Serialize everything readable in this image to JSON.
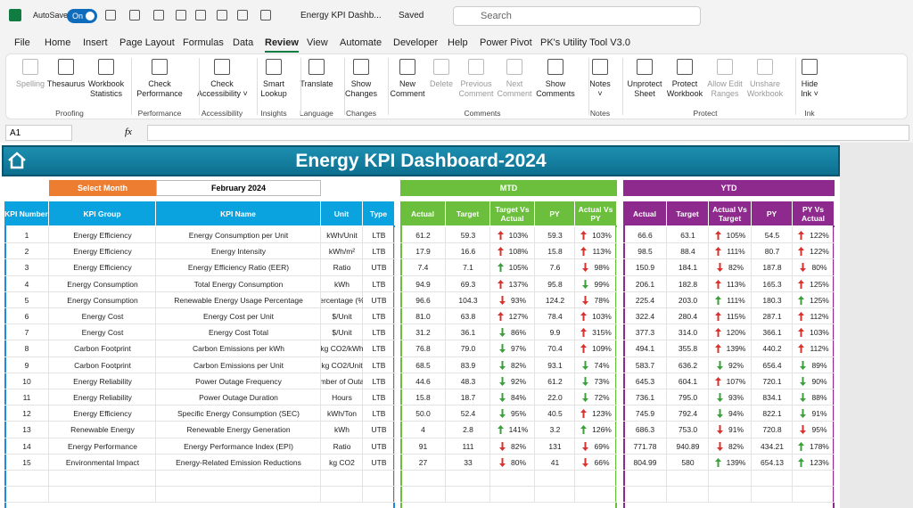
{
  "titlebar": {
    "autosave": "AutoSave",
    "toggle": "On",
    "filename": "Energy KPI Dashb...",
    "status": "Saved",
    "search": "Search"
  },
  "menu": [
    "File",
    "Home",
    "Insert",
    "Page Layout",
    "Formulas",
    "Data",
    "Review",
    "View",
    "Automate",
    "Developer",
    "Help",
    "Power Pivot",
    "PK's Utility Tool V3.0"
  ],
  "ribbon": {
    "buttons": [
      [
        "Spelling"
      ],
      [
        "Thesaurus"
      ],
      [
        "Workbook",
        "Statistics"
      ],
      [
        "Check",
        "Performance"
      ],
      [
        "Check",
        "Accessibility ˅"
      ],
      [
        "Smart",
        "Lookup"
      ],
      [
        "Translate"
      ],
      [
        "Show",
        "Changes"
      ],
      [
        "New",
        "Comment"
      ],
      [
        "Delete"
      ],
      [
        "Previous",
        "Comment"
      ],
      [
        "Next",
        "Comment"
      ],
      [
        "Show",
        "Comments"
      ],
      [
        "Notes",
        "˅"
      ],
      [
        "Unprotect",
        "Sheet"
      ],
      [
        "Protect",
        "Workbook"
      ],
      [
        "Allow Edit",
        "Ranges"
      ],
      [
        "Unshare",
        "Workbook"
      ],
      [
        "Hide",
        "Ink ˅"
      ]
    ],
    "groups": [
      "Proofing",
      "Performance",
      "Accessibility",
      "Insights",
      "Language",
      "Changes",
      "Comments",
      "Notes",
      "Protect",
      "Ink"
    ]
  },
  "formula_bar": {
    "name_box": "A1",
    "fx": "fx"
  },
  "dashboard": {
    "title": "Energy KPI Dashboard-2024",
    "select_month": "Select Month",
    "month": "February 2024",
    "mtd": "MTD",
    "ytd": "YTD"
  },
  "table": {
    "headers": [
      "KPI Number",
      "KPI Group",
      "KPI Name",
      "Unit",
      "Type",
      "Actual",
      "Target",
      "Target Vs Actual",
      "PY",
      "Actual Vs PY",
      "Actual",
      "Target",
      "Actual Vs Target",
      "PY",
      "PY Vs Actual"
    ],
    "rows": [
      [
        "1",
        "Energy Efficiency",
        "Energy Consumption per Unit",
        "kWh/Unit",
        "LTB",
        "61.2",
        "59.3",
        "103%",
        "59.3",
        "103%",
        "66.6",
        "63.1",
        "105%",
        "54.5",
        "122%"
      ],
      [
        "2",
        "Energy Efficiency",
        "Energy Intensity",
        "kWh/m²",
        "LTB",
        "17.9",
        "16.6",
        "108%",
        "15.8",
        "113%",
        "98.5",
        "88.4",
        "111%",
        "80.7",
        "122%"
      ],
      [
        "3",
        "Energy Efficiency",
        "Energy Efficiency Ratio (EER)",
        "Ratio",
        "UTB",
        "7.4",
        "7.1",
        "105%",
        "7.6",
        "98%",
        "150.9",
        "184.1",
        "82%",
        "187.8",
        "80%"
      ],
      [
        "4",
        "Energy Consumption",
        "Total Energy Consumption",
        "kWh",
        "LTB",
        "94.9",
        "69.3",
        "137%",
        "95.8",
        "99%",
        "206.1",
        "182.8",
        "113%",
        "165.3",
        "125%"
      ],
      [
        "5",
        "Energy Consumption",
        "Renewable Energy Usage Percentage",
        "ercentage (%",
        "UTB",
        "96.6",
        "104.3",
        "93%",
        "124.2",
        "78%",
        "225.4",
        "203.0",
        "111%",
        "180.3",
        "125%"
      ],
      [
        "6",
        "Energy Cost",
        "Energy Cost per Unit",
        "$/Unit",
        "LTB",
        "81.0",
        "63.8",
        "127%",
        "78.4",
        "103%",
        "322.4",
        "280.4",
        "115%",
        "287.1",
        "112%"
      ],
      [
        "7",
        "Energy Cost",
        "Energy Cost Total",
        "$/Unit",
        "LTB",
        "31.2",
        "36.1",
        "86%",
        "9.9",
        "315%",
        "377.3",
        "314.0",
        "120%",
        "366.1",
        "103%"
      ],
      [
        "8",
        "Carbon Footprint",
        "Carbon Emissions per kWh",
        "kg CO2/kWh",
        "LTB",
        "76.8",
        "79.0",
        "97%",
        "70.4",
        "109%",
        "494.1",
        "355.8",
        "139%",
        "440.2",
        "112%"
      ],
      [
        "9",
        "Carbon Footprint",
        "Carbon Emissions per Unit",
        "kg CO2/Unit",
        "LTB",
        "68.5",
        "83.9",
        "82%",
        "93.1",
        "74%",
        "583.7",
        "636.2",
        "92%",
        "656.4",
        "89%"
      ],
      [
        "10",
        "Energy Reliability",
        "Power Outage Frequency",
        "mber of Outa",
        "LTB",
        "44.6",
        "48.3",
        "92%",
        "61.2",
        "73%",
        "645.3",
        "604.1",
        "107%",
        "720.1",
        "90%"
      ],
      [
        "11",
        "Energy Reliability",
        "Power Outage Duration",
        "Hours",
        "LTB",
        "15.8",
        "18.7",
        "84%",
        "22.0",
        "72%",
        "736.1",
        "795.0",
        "93%",
        "834.1",
        "88%"
      ],
      [
        "12",
        "Energy Efficiency",
        "Specific Energy Consumption (SEC)",
        "kWh/Ton",
        "LTB",
        "50.0",
        "52.4",
        "95%",
        "40.5",
        "123%",
        "745.9",
        "792.4",
        "94%",
        "822.1",
        "91%"
      ],
      [
        "13",
        "Renewable Energy",
        "Renewable Energy Generation",
        "kWh",
        "UTB",
        "4",
        "2.8",
        "141%",
        "3.2",
        "126%",
        "686.3",
        "753.0",
        "91%",
        "720.8",
        "95%"
      ],
      [
        "14",
        "Energy Performance",
        "Energy Performance Index (EPI)",
        "Ratio",
        "UTB",
        "91",
        "111",
        "82%",
        "131",
        "69%",
        "771.78",
        "940.89",
        "82%",
        "434.21",
        "178%"
      ],
      [
        "15",
        "Environmental Impact",
        "Energy-Related Emission Reductions",
        "kg CO2",
        "UTB",
        "27",
        "33",
        "80%",
        "41",
        "66%",
        "804.99",
        "580",
        "139%",
        "654.13",
        "123%"
      ]
    ]
  }
}
